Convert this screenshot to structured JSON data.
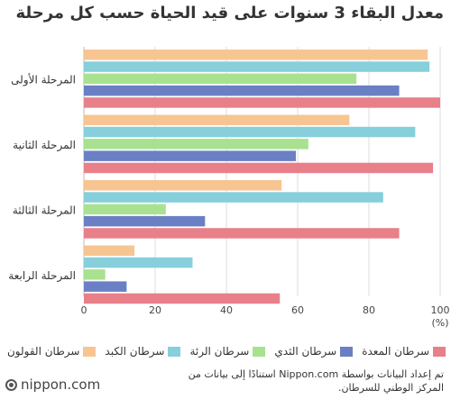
{
  "brand": "nippon.com",
  "note": "تم إعداد البيانات بواسطة Nippon.com استنادًا إلى بيانات من المركز الوطني للسرطان.",
  "chart_data": {
    "type": "bar",
    "orientation": "horizontal",
    "title": "معدل البقاء 3 سنوات على قيد الحياة حسب كل مرحلة",
    "xlabel": "(%)",
    "ylabel": "",
    "xlim": [
      0,
      100
    ],
    "xticks": [
      0,
      20,
      40,
      60,
      80,
      100
    ],
    "grid": true,
    "legend_position": "bottom",
    "categories": [
      "المرحلة الأولى",
      "المرحلة الثانية",
      "المرحلة الثالثة",
      "المرحلة الرابعة"
    ],
    "series": [
      {
        "name": "سرطان القولون",
        "color": "#f7c592",
        "values": [
          96.5,
          74.5,
          55.5,
          14.2
        ]
      },
      {
        "name": "سرطان الكبد",
        "color": "#86cfdb",
        "values": [
          97,
          93,
          84,
          30.5
        ]
      },
      {
        "name": "سرطان الرئة",
        "color": "#a8e290",
        "values": [
          76.5,
          63,
          23,
          6
        ]
      },
      {
        "name": "سرطان الثدي",
        "color": "#6b7fc4",
        "values": [
          88.5,
          59.5,
          34,
          12
        ]
      },
      {
        "name": "سرطان المعدة",
        "color": "#e8808a",
        "values": [
          100,
          98,
          88.5,
          55
        ]
      }
    ]
  }
}
